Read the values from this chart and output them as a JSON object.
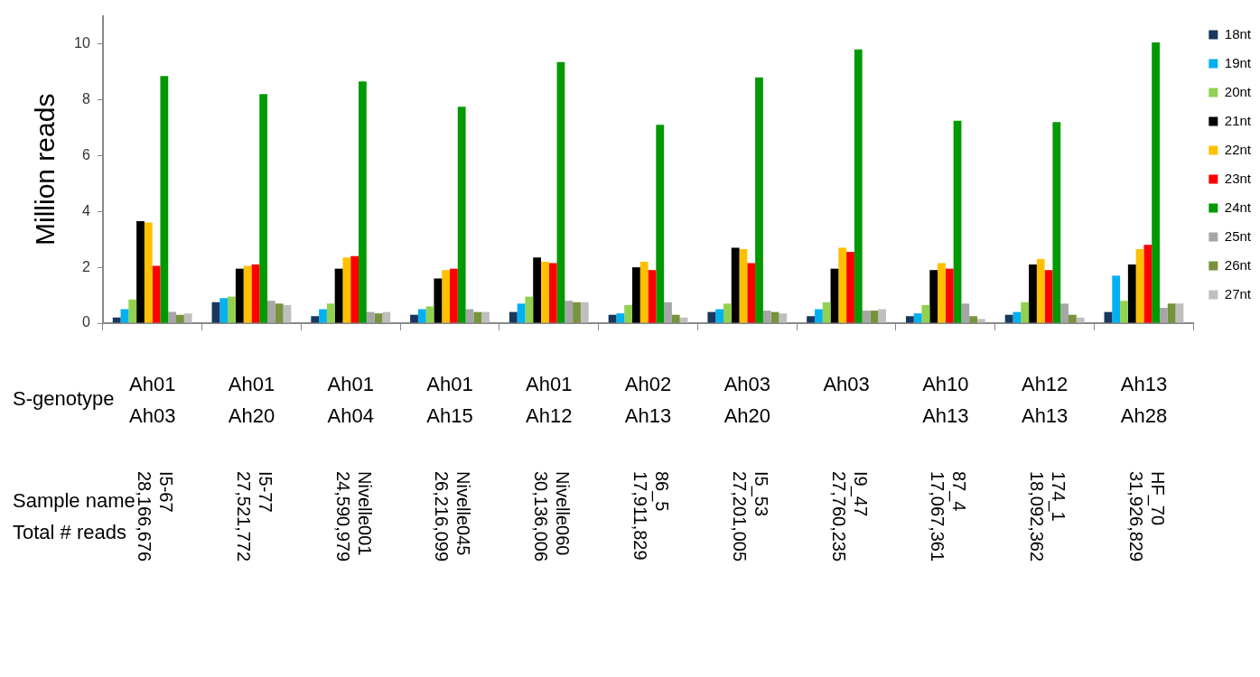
{
  "chart_data": {
    "type": "bar",
    "ylabel": "Million reads",
    "categories": [
      "Ah01 Ah03",
      "Ah01 Ah20",
      "Ah01 Ah04",
      "Ah01 Ah15",
      "Ah01 Ah12",
      "Ah02 Ah13",
      "Ah03 Ah20",
      "Ah03",
      "Ah10 Ah13",
      "Ah12 Ah13",
      "Ah13 Ah28"
    ],
    "series": [
      {
        "name": "18nt",
        "color": "#17375e",
        "values": [
          0.2,
          0.75,
          0.25,
          0.3,
          0.4,
          0.3,
          0.4,
          0.25,
          0.25,
          0.3,
          0.4
        ]
      },
      {
        "name": "19nt",
        "color": "#00b0f0",
        "values": [
          0.5,
          0.9,
          0.5,
          0.5,
          0.7,
          0.35,
          0.5,
          0.5,
          0.35,
          0.4,
          1.7
        ]
      },
      {
        "name": "20nt",
        "color": "#92d050",
        "values": [
          0.85,
          0.95,
          0.7,
          0.6,
          0.95,
          0.65,
          0.7,
          0.75,
          0.65,
          0.75,
          0.8
        ]
      },
      {
        "name": "21nt",
        "color": "#000000",
        "values": [
          3.65,
          1.95,
          1.95,
          1.6,
          2.35,
          2.0,
          2.7,
          1.95,
          1.9,
          2.1,
          2.1
        ]
      },
      {
        "name": "22nt",
        "color": "#ffc000",
        "values": [
          3.6,
          2.05,
          2.35,
          1.9,
          2.2,
          2.2,
          2.65,
          2.7,
          2.15,
          2.3,
          2.65
        ]
      },
      {
        "name": "23nt",
        "color": "#ff0000",
        "values": [
          2.05,
          2.1,
          2.4,
          1.95,
          2.15,
          1.9,
          2.15,
          2.55,
          1.95,
          1.9,
          2.8
        ]
      },
      {
        "name": "24nt",
        "color": "#009900",
        "values": [
          8.85,
          8.2,
          8.65,
          7.75,
          9.35,
          7.1,
          8.8,
          9.8,
          7.25,
          7.2,
          10.05
        ]
      },
      {
        "name": "25nt",
        "color": "#a6a6a6",
        "values": [
          0.4,
          0.8,
          0.4,
          0.5,
          0.8,
          0.75,
          0.45,
          0.45,
          0.7,
          0.7,
          0.55
        ]
      },
      {
        "name": "26nt",
        "color": "#77933c",
        "values": [
          0.3,
          0.7,
          0.35,
          0.4,
          0.75,
          0.3,
          0.4,
          0.45,
          0.25,
          0.3,
          0.7
        ]
      },
      {
        "name": "27nt",
        "color": "#bfbfbf",
        "values": [
          0.35,
          0.65,
          0.4,
          0.4,
          0.75,
          0.2,
          0.35,
          0.5,
          0.15,
          0.2,
          0.7
        ]
      }
    ],
    "ylim": [
      0,
      11
    ],
    "yticks": [
      0,
      2,
      4,
      6,
      8,
      10
    ],
    "grid": false,
    "legend": "top right",
    "annotations": [
      "S-genotype",
      "Sample name",
      "Total # reads",
      "I5-67",
      "28,166,676",
      "I5-77",
      "27,521,772",
      "Nivelle001",
      "24,590,979",
      "Nivelle045",
      "26,216,099",
      "Nivelle060",
      "30,136,006",
      "86_5",
      "17,911,829",
      "I5_53",
      "27,201,005",
      "I9_47",
      "27,760,235",
      "87_4",
      "17,067,361",
      "174_1",
      "18,092,362",
      "HF_70",
      "31,926,829"
    ]
  }
}
